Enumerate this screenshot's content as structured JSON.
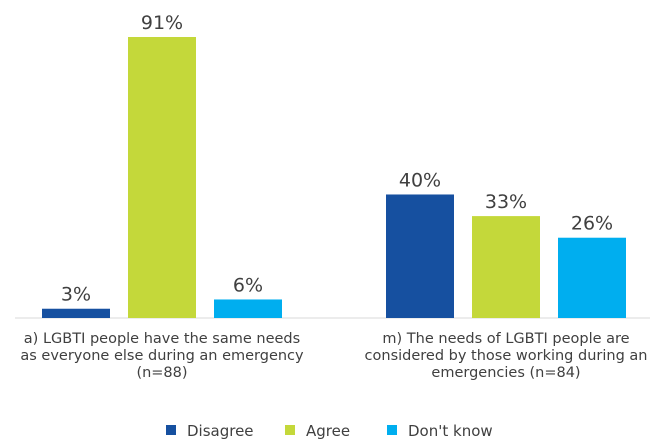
{
  "chart_data": {
    "type": "bar",
    "categories": [
      [
        "a) LGBTI people have the same needs",
        "as everyone else during an emergency",
        "(n=88)"
      ],
      [
        "m) The needs of LGBTI people are",
        "considered by those working during an",
        "emergencies (n=84)"
      ]
    ],
    "series": [
      {
        "name": "Disagree",
        "values": [
          3,
          40
        ],
        "labels": [
          "3%",
          "40%"
        ],
        "color": "#1650A0"
      },
      {
        "name": "Agree",
        "values": [
          91,
          33
        ],
        "labels": [
          "91%",
          "33%"
        ],
        "color": "#C4D83A"
      },
      {
        "name": "Don't know",
        "values": [
          6,
          26
        ],
        "labels": [
          "6%",
          "26%"
        ],
        "color": "#00AEEF"
      }
    ],
    "ylim": [
      0,
      100
    ],
    "grid": false,
    "legend": "bottom"
  }
}
